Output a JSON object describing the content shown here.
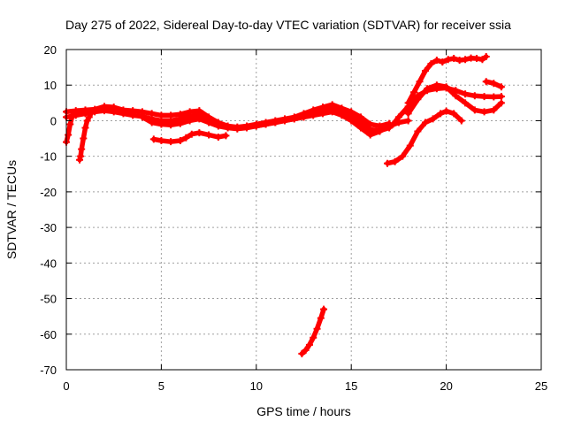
{
  "chart_data": {
    "type": "scatter",
    "title": "Day 275 of 2022, Sidereal Day-to-day VTEC variation (SDTVAR) for receiver ssia",
    "xlabel": "GPS time / hours",
    "ylabel": "SDTVAR / TECUs",
    "xlim": [
      0,
      25
    ],
    "ylim": [
      -70,
      20
    ],
    "xticks": [
      0,
      5,
      10,
      15,
      20,
      25
    ],
    "yticks": [
      -70,
      -60,
      -50,
      -40,
      -30,
      -20,
      -10,
      0,
      10,
      20
    ],
    "xtick_labels": [
      "0",
      "5",
      "10",
      "15",
      "20",
      "25"
    ],
    "ytick_labels": [
      "-70",
      "-60",
      "-50",
      "-40",
      "-30",
      "-20",
      "-10",
      "0",
      "10",
      "20"
    ],
    "grid": true,
    "legend": "none",
    "marker": "+",
    "color": "#ff0000",
    "series": [
      {
        "name": "main-band-upper",
        "x": [
          0,
          0.5,
          1,
          1.5,
          2,
          2.5,
          3,
          3.5,
          4,
          4.5,
          5,
          5.5,
          6,
          6.5,
          7,
          7.5,
          8,
          8.5,
          9,
          9.5,
          10,
          10.5,
          11,
          11.5,
          12,
          12.5,
          13,
          13.5,
          14,
          14.5,
          15,
          15.5,
          16,
          16.5,
          17
        ],
        "y": [
          2.5,
          2.8,
          3,
          3.2,
          4,
          3.8,
          3,
          2.8,
          2.5,
          2,
          1.5,
          1.5,
          1.8,
          2.5,
          2.8,
          1,
          -0.5,
          -1.5,
          -1.8,
          -1.5,
          -1,
          -0.5,
          0,
          0.5,
          1,
          2,
          3,
          3.8,
          4.5,
          3.5,
          2.5,
          1,
          -1,
          -1.5,
          -0.8
        ]
      },
      {
        "name": "main-band-mid",
        "x": [
          0,
          0.5,
          1,
          1.5,
          2,
          2.5,
          3,
          3.5,
          4,
          4.5,
          5,
          5.5,
          6,
          6.5,
          7,
          7.5,
          8,
          8.5,
          9,
          9.5,
          10,
          10.5,
          11,
          11.5,
          12,
          12.5,
          13,
          13.5,
          14,
          14.5,
          15,
          15.5,
          16,
          16.5,
          17
        ],
        "y": [
          1,
          1.5,
          2,
          2.5,
          2.8,
          2.5,
          2,
          1.5,
          1.2,
          0.5,
          0,
          0,
          0.5,
          1.2,
          1.5,
          0.5,
          -1,
          -1.8,
          -2,
          -1.8,
          -1.5,
          -1,
          -0.5,
          0,
          0.5,
          1,
          2,
          3,
          3.5,
          2.5,
          1.5,
          -0.5,
          -2.5,
          -2.8,
          -2
        ]
      },
      {
        "name": "main-band-lower",
        "x": [
          4,
          4.5,
          5,
          5.5,
          6,
          6.5,
          7,
          7.5,
          8,
          8.5,
          9,
          9.5,
          10,
          10.5,
          11,
          11.5,
          12,
          12.5,
          13,
          13.5,
          14,
          14.5,
          15,
          15.5,
          16,
          16.5,
          17,
          17.5,
          18
        ],
        "y": [
          1,
          -0.5,
          -1,
          -1.2,
          -0.8,
          0,
          0.5,
          -0.5,
          -1.5,
          -2,
          -2.3,
          -2,
          -1.5,
          -1,
          -0.5,
          0,
          0.5,
          1,
          1.5,
          2,
          2.5,
          1.5,
          0,
          -2,
          -4,
          -3,
          -1.5,
          -0.5,
          0
        ]
      },
      {
        "name": "early-dip",
        "x": [
          0,
          0.1,
          0.2,
          0.3,
          0.4,
          0.6
        ],
        "y": [
          -6,
          -4,
          -1,
          1,
          2,
          2.5
        ]
      },
      {
        "name": "early-drop",
        "x": [
          0.7,
          0.75,
          0.8,
          0.9,
          1.0,
          1.1,
          1.2,
          1.3
        ],
        "y": [
          -11,
          -10,
          -8,
          -5,
          -2,
          0,
          1,
          2
        ]
      },
      {
        "name": "afternoon-segment",
        "x": [
          4.6,
          5,
          5.5,
          6,
          6.3,
          6.6,
          7,
          7.5,
          8,
          8.4
        ],
        "y": [
          -5.2,
          -5.6,
          -5.9,
          -5.6,
          -4.8,
          -3.8,
          -3.4,
          -4,
          -4.6,
          -4.2
        ]
      },
      {
        "name": "outlier-arc",
        "x": [
          12.4,
          12.6,
          12.8,
          13.0,
          13.2,
          13.4,
          13.55
        ],
        "y": [
          -65.5,
          -64.5,
          -63,
          -61,
          -58.5,
          -55.5,
          -53
        ]
      },
      {
        "name": "late-top",
        "x": [
          18,
          18.3,
          18.6,
          18.9,
          19.2,
          19.5,
          19.8,
          20.1,
          20.4,
          20.7,
          21,
          21.3,
          21.6,
          21.9,
          22.1
        ],
        "y": [
          5,
          8,
          11,
          14,
          16,
          17,
          16.5,
          17.2,
          17.5,
          17,
          17.2,
          17.6,
          17.5,
          17.2,
          18
        ]
      },
      {
        "name": "late-upper",
        "x": [
          18,
          18.5,
          19,
          19.5,
          20,
          20.5,
          21,
          21.5,
          22,
          22.5,
          22.9
        ],
        "y": [
          2,
          6,
          9,
          10,
          9.5,
          7,
          5,
          3,
          2.5,
          3,
          5
        ]
      },
      {
        "name": "late-mid",
        "x": [
          17.2,
          17.5,
          18,
          18.5,
          19,
          19.5,
          20,
          20.5,
          21,
          21.5,
          22,
          22.5,
          22.9
        ],
        "y": [
          -1,
          1,
          4,
          7,
          8.5,
          9,
          9.2,
          8.5,
          7.5,
          7,
          6.8,
          6.7,
          6.8
        ]
      },
      {
        "name": "late-lower",
        "x": [
          16.9,
          17.3,
          17.7,
          18.1,
          18.5,
          18.9,
          19.3,
          19.7,
          20,
          20.4,
          20.8
        ],
        "y": [
          -12,
          -11.5,
          -10,
          -7,
          -3,
          -0.5,
          0.5,
          2,
          2.7,
          2,
          0
        ]
      },
      {
        "name": "late-right",
        "x": [
          22.1,
          22.5,
          22.9
        ],
        "y": [
          11,
          10.5,
          9.5
        ]
      }
    ]
  }
}
